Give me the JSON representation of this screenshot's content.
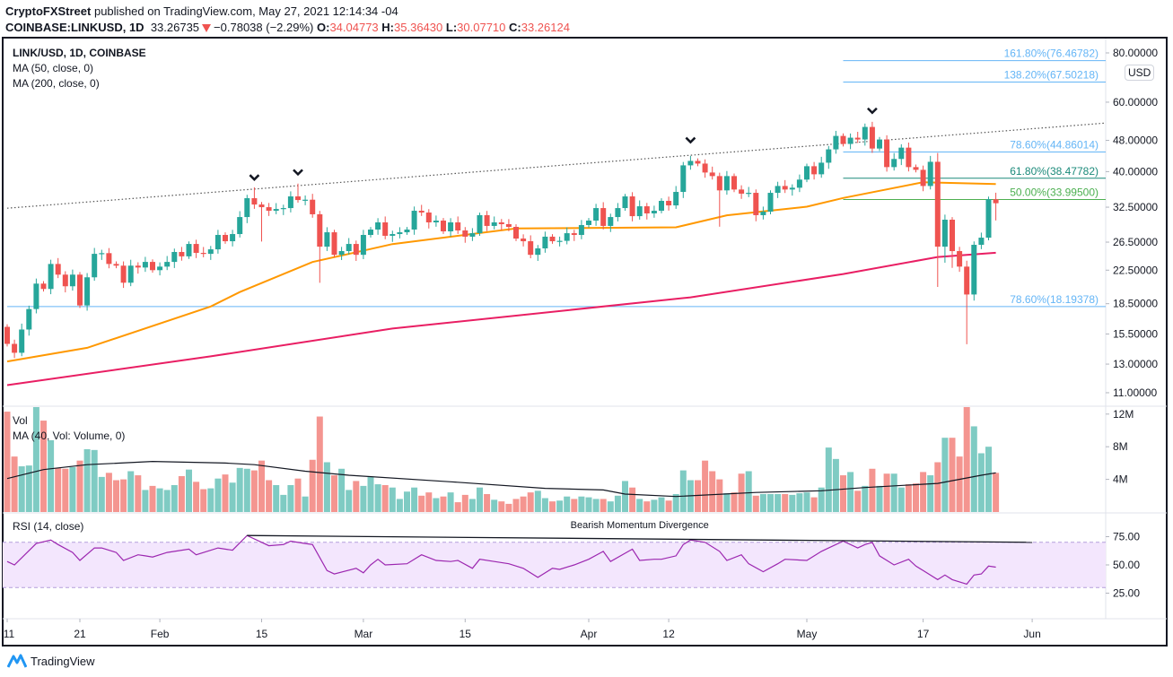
{
  "header": {
    "author": "CryptoFXStreet",
    "published": " published on TradingView.com, May 27, 2021 12:14:34 -04",
    "symbol": "COINBASE:LINKUSD, 1D",
    "last": "33.26735",
    "change": "−0.78038 (−2.29%)",
    "o_label": "O:",
    "o": "34.04773",
    "h_label": "H:",
    "h": "35.36430",
    "l_label": "L:",
    "l": "30.07710",
    "c_label": "C:",
    "c": "33.26124",
    "direction_icon": "triangle-down-icon"
  },
  "legend": {
    "title": "LINK/USD, 1D, COINBASE",
    "ma50": "MA (50, close, 0)",
    "ma200": "MA (200, close, 0)",
    "vol": "Vol",
    "vol_ma": "MA (40, Vol: Volume, 0)",
    "rsi": "RSI (14, close)"
  },
  "currency_badge": "USD",
  "colors": {
    "up": "#26a69a",
    "down": "#ef5350",
    "vol_up": "#7fcbc3",
    "vol_down": "#f49590",
    "ma50": "#ff9800",
    "ma200": "#e91e63",
    "rsi": "#9c27b0",
    "rsi_band": "#f3e6fd",
    "fib_blue": "#64b5f6",
    "fib_teal": "#1b8a7a",
    "fib_green": "#4caf50"
  },
  "chart_data": {
    "type": "candlestick",
    "price_axis": {
      "scale": "log",
      "ticks": [
        "80.00000",
        "60.00000",
        "48.00000",
        "40.00000",
        "32.50000",
        "26.50000",
        "22.50000",
        "18.50000",
        "15.50000",
        "13.00000",
        "11.00000"
      ]
    },
    "time_axis": {
      "ticks": [
        [
          "01-11",
          "11"
        ],
        [
          "01-21",
          "21"
        ],
        [
          "02-01",
          "Feb"
        ],
        [
          "02-15",
          "15"
        ],
        [
          "03-01",
          "Mar"
        ],
        [
          "03-15",
          "15"
        ],
        [
          "04-01",
          "Apr"
        ],
        [
          "04-12",
          "12"
        ],
        [
          "05-01",
          "May"
        ],
        [
          "05-17",
          "17"
        ],
        [
          "06-01",
          "Jun"
        ]
      ]
    },
    "first_open": 16.16,
    "candles": [
      [
        "01-11",
        14.63
      ],
      [
        "01-12",
        13.89
      ],
      [
        "01-13",
        15.91
      ],
      [
        "01-14",
        17.93
      ],
      [
        "01-15",
        20.8
      ],
      [
        "01-16",
        20.16
      ],
      [
        "01-17",
        23.33
      ],
      [
        "01-18",
        21.92
      ],
      [
        "01-19",
        20.48
      ],
      [
        "01-20",
        21.92
      ],
      [
        "01-21",
        18.31
      ],
      [
        "01-22",
        21.58
      ],
      [
        "01-23",
        24.75
      ],
      [
        "01-24",
        24.85
      ],
      [
        "01-25",
        23.33
      ],
      [
        "01-26",
        23.1
      ],
      [
        "01-27",
        20.91
      ],
      [
        "01-28",
        23.1
      ],
      [
        "01-29",
        22.85
      ],
      [
        "01-30",
        23.61
      ],
      [
        "01-31",
        22.5
      ],
      [
        "02-01",
        22.97
      ],
      [
        "02-02",
        23.61
      ],
      [
        "02-03",
        25.02
      ],
      [
        "02-04",
        24.39
      ],
      [
        "02-05",
        26.22
      ],
      [
        "02-06",
        24.89
      ],
      [
        "02-07",
        24.75
      ],
      [
        "02-08",
        25.41
      ],
      [
        "02-09",
        27.64
      ],
      [
        "02-10",
        26.64
      ],
      [
        "02-11",
        27.78
      ],
      [
        "02-12",
        30.68
      ],
      [
        "02-13",
        34.25
      ],
      [
        "02-14",
        33.01
      ],
      [
        "02-15",
        32.5
      ],
      [
        "02-16",
        31.83
      ],
      [
        "02-17",
        32.16
      ],
      [
        "02-18",
        32.33
      ],
      [
        "02-19",
        34.61
      ],
      [
        "02-20",
        33.89
      ],
      [
        "02-21",
        33.95
      ],
      [
        "02-22",
        31.18
      ],
      [
        "02-23",
        25.81
      ],
      [
        "02-24",
        28.07
      ],
      [
        "02-25",
        24.61
      ],
      [
        "02-26",
        25.15
      ],
      [
        "02-27",
        26.22
      ],
      [
        "02-28",
        24.61
      ],
      [
        "03-01",
        27.64
      ],
      [
        "03-02",
        28.52
      ],
      [
        "03-03",
        29.74
      ],
      [
        "03-04",
        27.5
      ],
      [
        "03-05",
        27.78
      ],
      [
        "03-06",
        28.07
      ],
      [
        "03-07",
        28.52
      ],
      [
        "03-08",
        31.83
      ],
      [
        "03-09",
        31.5
      ],
      [
        "03-10",
        29.74
      ],
      [
        "03-11",
        30.05
      ],
      [
        "03-12",
        28.22
      ],
      [
        "03-13",
        29.74
      ],
      [
        "03-14",
        28.37
      ],
      [
        "03-15",
        27.36
      ],
      [
        "03-16",
        27.92
      ],
      [
        "03-17",
        31.02
      ],
      [
        "03-18",
        29.13
      ],
      [
        "03-19",
        29.74
      ],
      [
        "03-20",
        29.43
      ],
      [
        "03-21",
        28.97
      ],
      [
        "03-22",
        27.06
      ],
      [
        "03-23",
        26.64
      ],
      [
        "03-24",
        24.61
      ],
      [
        "03-25",
        25.55
      ],
      [
        "03-26",
        27.36
      ],
      [
        "03-27",
        26.64
      ],
      [
        "03-28",
        26.7
      ],
      [
        "03-29",
        27.92
      ],
      [
        "03-30",
        27.64
      ],
      [
        "03-31",
        29.28
      ],
      [
        "04-01",
        30.05
      ],
      [
        "04-02",
        32.33
      ],
      [
        "04-03",
        29.13
      ],
      [
        "04-04",
        30.68
      ],
      [
        "04-05",
        32.33
      ],
      [
        "04-06",
        34.61
      ],
      [
        "04-07",
        30.84
      ],
      [
        "04-08",
        32.67
      ],
      [
        "04-09",
        31.34
      ],
      [
        "04-10",
        31.83
      ],
      [
        "04-11",
        33.72
      ],
      [
        "04-12",
        32.84
      ],
      [
        "04-13",
        35.53
      ],
      [
        "04-14",
        41.49
      ],
      [
        "04-15",
        42.58
      ],
      [
        "04-16",
        41.92
      ],
      [
        "04-17",
        39.79
      ],
      [
        "04-18",
        38.97
      ],
      [
        "04-19",
        35.85
      ],
      [
        "04-20",
        38.97
      ],
      [
        "04-21",
        36.03
      ],
      [
        "04-22",
        35.17
      ],
      [
        "04-23",
        35.34
      ],
      [
        "04-24",
        31.02
      ],
      [
        "04-25",
        31.66
      ],
      [
        "04-26",
        35.34
      ],
      [
        "04-27",
        36.78
      ],
      [
        "04-28",
        36.03
      ],
      [
        "04-29",
        36.41
      ],
      [
        "04-30",
        38.18
      ],
      [
        "05-01",
        41.28
      ],
      [
        "05-02",
        39.38
      ],
      [
        "05-03",
        42.14
      ],
      [
        "05-04",
        45.55
      ],
      [
        "05-05",
        49.27
      ],
      [
        "05-06",
        47.02
      ],
      [
        "05-07",
        48.76
      ],
      [
        "05-08",
        48.25
      ],
      [
        "05-09",
        51.92
      ],
      [
        "05-10",
        45.77
      ],
      [
        "05-11",
        48.25
      ],
      [
        "05-12",
        41.07
      ],
      [
        "05-13",
        43.07
      ],
      [
        "05-14",
        46.01
      ],
      [
        "05-15",
        41.07
      ],
      [
        "05-16",
        40.42
      ],
      [
        "05-17",
        36.78
      ],
      [
        "05-18",
        42.36
      ],
      [
        "05-19",
        25.81
      ],
      [
        "05-20",
        30.21
      ],
      [
        "05-21",
        25.15
      ],
      [
        "05-22",
        22.97
      ],
      [
        "05-23",
        19.52
      ],
      [
        "05-24",
        26.09
      ],
      [
        "05-25",
        27.2
      ],
      [
        "05-26",
        34.05
      ],
      [
        "05-27",
        33.26
      ]
    ],
    "wick_overrides": [
      {
        "d": "02-14",
        "h": 36.5
      },
      {
        "d": "02-15",
        "l": 26.6
      },
      {
        "d": "02-20",
        "h": 37.3
      },
      {
        "d": "02-23",
        "l": 20.9
      },
      {
        "d": "04-19",
        "l": 29.0
      },
      {
        "d": "05-10",
        "h": 53.5
      },
      {
        "d": "05-12",
        "l": 40.0
      },
      {
        "d": "05-19",
        "h": 44.6,
        "l": 20.4
      },
      {
        "d": "05-20",
        "l": 23.5
      },
      {
        "d": "05-21",
        "l": 22.8
      },
      {
        "d": "05-23",
        "l": 14.6
      },
      {
        "d": "05-27",
        "h": 35.3643,
        "l": 30.0771
      }
    ],
    "ma50": [
      [
        "01-11",
        13.2
      ],
      [
        "01-22",
        14.3
      ],
      [
        "02-08",
        18.2
      ],
      [
        "02-12",
        19.8
      ],
      [
        "02-22",
        23.6
      ],
      [
        "03-05",
        26.2
      ],
      [
        "03-22",
        28.7
      ],
      [
        "04-13",
        28.9
      ],
      [
        "04-20",
        31.0
      ],
      [
        "05-01",
        32.6
      ],
      [
        "05-06",
        34.3
      ],
      [
        "05-17",
        37.6
      ],
      [
        "05-27",
        37.2
      ]
    ],
    "ma200": [
      [
        "01-11",
        11.5
      ],
      [
        "02-08",
        13.6
      ],
      [
        "03-05",
        16.0
      ],
      [
        "04-15",
        19.2
      ],
      [
        "05-06",
        22.0
      ],
      [
        "05-19",
        24.3
      ],
      [
        "05-27",
        24.9
      ]
    ],
    "resistance_line": [
      [
        "01-11",
        32.3
      ],
      [
        "06-11",
        53.1
      ]
    ],
    "fib_levels": [
      {
        "label": "161.80%(76.46782)",
        "value": 76.46782,
        "color": "#64b5f6",
        "from": "05-06"
      },
      {
        "label": "138.20%(67.50218)",
        "value": 67.50218,
        "color": "#64b5f6",
        "from": "05-06"
      },
      {
        "label": "78.60%(44.86014)",
        "value": 44.86014,
        "color": "#64b5f6",
        "from": "05-06"
      },
      {
        "label": "61.80%(38.47782)",
        "value": 38.47782,
        "color": "#1b8a7a",
        "from": "05-06"
      },
      {
        "label": "50.00%(33.99500)",
        "value": 33.995,
        "color": "#4caf50",
        "from": "05-06"
      },
      {
        "label": "78.60%(18.19378)",
        "value": 18.19378,
        "color": "#64b5f6",
        "from": "01-11"
      }
    ],
    "peak_markers": [
      [
        "02-14",
        38.6
      ],
      [
        "02-20",
        39.8
      ],
      [
        "04-15",
        48.0
      ],
      [
        "05-10",
        57.0
      ]
    ],
    "volume": {
      "ticks": [
        [
          "12M",
          12
        ],
        [
          "8M",
          8
        ],
        [
          "4M",
          4
        ]
      ],
      "values": [
        12.3,
        6.8,
        5.6,
        5.7,
        13,
        11.2,
        8.8,
        5.4,
        5.3,
        5.5,
        6.3,
        7.7,
        7.6,
        4.3,
        4.8,
        3.9,
        4.0,
        5.0,
        4.5,
        2.7,
        3.2,
        2.9,
        2.7,
        3.3,
        4.4,
        5.2,
        3.7,
        2.8,
        2.9,
        4.1,
        4.6,
        3.6,
        5.4,
        5.3,
        5.1,
        6.3,
        3.9,
        3.3,
        2.1,
        3.3,
        4.1,
        1.9,
        6.4,
        11.7,
        6.1,
        4.5,
        5.3,
        2.7,
        3.8,
        3.2,
        4.3,
        3.4,
        3.3,
        3.0,
        1.6,
        2.5,
        3.0,
        2.0,
        2.4,
        1.7,
        1.9,
        2.4,
        1.2,
        2.1,
        1.6,
        3.0,
        2.2,
        1.5,
        1.3,
        1.0,
        1.6,
        1.9,
        2.4,
        2.6,
        1.7,
        1.3,
        1.4,
        1.9,
        1.6,
        1.9,
        1.8,
        1.6,
        1.6,
        1.3,
        2.0,
        3.8,
        3.0,
        1.6,
        1.3,
        1.5,
        1.8,
        1.4,
        2.2,
        5.1,
        3.9,
        3.9,
        6.3,
        5.0,
        4.0,
        2.3,
        2.4,
        4.7,
        5.0,
        2.0,
        2.2,
        2.2,
        2.2,
        2.2,
        2.1,
        2.3,
        2.4,
        1.8,
        3.0,
        7.9,
        6.5,
        4.5,
        4.9,
        2.6,
        3.2,
        5.3,
        3.2,
        4.7,
        4.7,
        3.0,
        3.4,
        3.5,
        4.9,
        4.5,
        6.1,
        9.1,
        9.1,
        6.8,
        13,
        10.5,
        7.2,
        8.0,
        4.8
      ],
      "ma40": [
        [
          "01-11",
          4.1
        ],
        [
          "01-16",
          5.2
        ],
        [
          "01-22",
          5.8
        ],
        [
          "01-31",
          6.2
        ],
        [
          "02-10",
          6.0
        ],
        [
          "02-14",
          5.8
        ],
        [
          "02-21",
          5.0
        ],
        [
          "02-27",
          4.5
        ],
        [
          "03-13",
          3.7
        ],
        [
          "03-26",
          2.9
        ],
        [
          "04-03",
          2.7
        ],
        [
          "04-06",
          2.2
        ],
        [
          "04-13",
          1.9
        ],
        [
          "04-24",
          2.4
        ],
        [
          "05-03",
          2.6
        ],
        [
          "05-09",
          3.0
        ],
        [
          "05-19",
          3.5
        ],
        [
          "05-25",
          4.5
        ],
        [
          "05-27",
          4.8
        ]
      ]
    },
    "rsi": {
      "ticks": [
        [
          "75.00",
          75
        ],
        [
          "50.00",
          50
        ],
        [
          "25.00",
          25
        ]
      ],
      "bands": [
        30,
        70
      ],
      "values": [
        [
          "01-11",
          53
        ],
        [
          "01-12",
          50
        ],
        [
          "01-15",
          69
        ],
        [
          "01-17",
          72
        ],
        [
          "01-18",
          68
        ],
        [
          "01-20",
          61
        ],
        [
          "01-21",
          54
        ],
        [
          "01-23",
          65
        ],
        [
          "01-24",
          65
        ],
        [
          "01-26",
          61
        ],
        [
          "01-27",
          54
        ],
        [
          "01-29",
          59
        ],
        [
          "01-30",
          58
        ],
        [
          "01-31",
          57
        ],
        [
          "02-02",
          61
        ],
        [
          "02-03",
          62
        ],
        [
          "02-05",
          64
        ],
        [
          "02-06",
          59
        ],
        [
          "02-09",
          65
        ],
        [
          "02-11",
          63
        ],
        [
          "02-13",
          76
        ],
        [
          "02-15",
          70
        ],
        [
          "02-16",
          67
        ],
        [
          "02-18",
          68
        ],
        [
          "02-19",
          71
        ],
        [
          "02-21",
          69
        ],
        [
          "02-22",
          68
        ],
        [
          "02-24",
          45
        ],
        [
          "02-25",
          42
        ],
        [
          "02-28",
          47
        ],
        [
          "03-01",
          43
        ],
        [
          "03-02",
          50
        ],
        [
          "03-03",
          55
        ],
        [
          "03-04",
          50
        ],
        [
          "03-07",
          51
        ],
        [
          "03-09",
          59
        ],
        [
          "03-11",
          54
        ],
        [
          "03-13",
          53
        ],
        [
          "03-14",
          54
        ],
        [
          "03-16",
          47
        ],
        [
          "03-17",
          55
        ],
        [
          "03-19",
          53
        ],
        [
          "03-21",
          51
        ],
        [
          "03-23",
          47
        ],
        [
          "03-25",
          39
        ],
        [
          "03-27",
          47
        ],
        [
          "03-28",
          46
        ],
        [
          "03-30",
          50
        ],
        [
          "04-01",
          55
        ],
        [
          "04-03",
          62
        ],
        [
          "04-04",
          53
        ],
        [
          "04-07",
          64
        ],
        [
          "04-08",
          54
        ],
        [
          "04-10",
          55
        ],
        [
          "04-11",
          55
        ],
        [
          "04-13",
          58
        ],
        [
          "04-14",
          68
        ],
        [
          "04-15",
          72
        ],
        [
          "04-17",
          70
        ],
        [
          "04-19",
          62
        ],
        [
          "04-20",
          54
        ],
        [
          "04-22",
          59
        ],
        [
          "04-23",
          51
        ],
        [
          "04-25",
          44
        ],
        [
          "04-27",
          51
        ],
        [
          "04-28",
          55
        ],
        [
          "05-01",
          54
        ],
        [
          "05-03",
          62
        ],
        [
          "05-04",
          65
        ],
        [
          "05-06",
          71
        ],
        [
          "05-08",
          65
        ],
        [
          "05-09",
          68
        ],
        [
          "05-10",
          70
        ],
        [
          "05-11",
          58
        ],
        [
          "05-13",
          50
        ],
        [
          "05-15",
          55
        ],
        [
          "05-16",
          49
        ],
        [
          "05-17",
          45
        ],
        [
          "05-19",
          37
        ],
        [
          "05-20",
          41
        ],
        [
          "05-21",
          37
        ],
        [
          "05-23",
          33
        ],
        [
          "05-24",
          41
        ],
        [
          "05-25",
          42
        ],
        [
          "05-26",
          49
        ],
        [
          "05-27",
          48
        ]
      ],
      "divergence": {
        "label": "Bearish Momentum Divergence",
        "points": [
          [
            "02-13",
            76
          ],
          [
            "06-01",
            70
          ]
        ]
      }
    }
  },
  "footer": {
    "brand": "TradingView"
  }
}
